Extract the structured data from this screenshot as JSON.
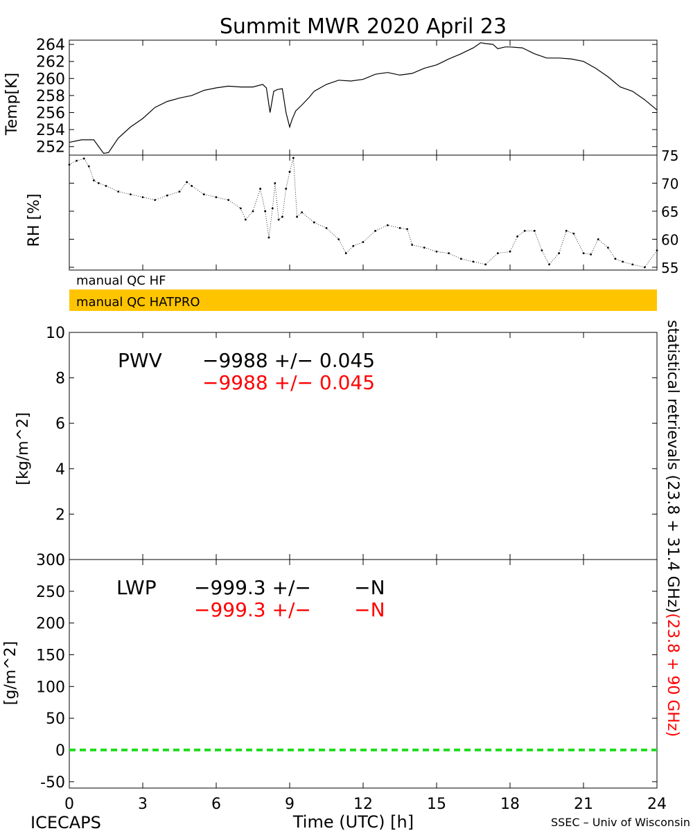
{
  "title": "Summit MWR 2020 April 23",
  "footer": {
    "left": "ICECAPS",
    "right": "SSEC – Univ of Wisconsin"
  },
  "qc": {
    "hf_label": "manual QC HF",
    "hatpro_label": "manual QC HATPRO",
    "hatpro_color": "#ffc400"
  },
  "right_caption": {
    "black": "statistical retrievals (23.8 + 31.4 GHz)",
    "red": "(23.8 + 90 GHz)"
  },
  "pwv_text": {
    "label": "PWV",
    "black": "−9988 +/− 0.045",
    "red": "−9988 +/− 0.045"
  },
  "lwp_text": {
    "label": "LWP",
    "black": "−999.3 +/−       −N",
    "red": "−999.3 +/−       −N"
  },
  "colors": {
    "red": "#ff0000",
    "green": "#22dd22",
    "black": "#000000"
  },
  "chart_data": [
    {
      "id": "temp",
      "type": "line",
      "ylabel": "Temp[K]",
      "xlim": [
        0,
        24
      ],
      "ylim": [
        251,
        264.5
      ],
      "yticks": [
        252,
        254,
        256,
        258,
        260,
        262,
        264
      ],
      "x": [
        0,
        0.5,
        1.0,
        1.4,
        1.6,
        2.0,
        2.5,
        3.0,
        3.5,
        4.0,
        4.5,
        5.0,
        5.5,
        6.0,
        6.5,
        7.0,
        7.5,
        7.9,
        8.05,
        8.2,
        8.35,
        8.5,
        8.7,
        8.85,
        9.0,
        9.1,
        9.25,
        9.5,
        9.8,
        10.0,
        10.5,
        11.0,
        11.5,
        12.0,
        12.5,
        13.0,
        13.5,
        14.0,
        14.5,
        15.0,
        15.5,
        16.0,
        16.5,
        16.8,
        17.0,
        17.3,
        17.5,
        17.8,
        18.0,
        18.5,
        19.0,
        19.5,
        20.0,
        20.5,
        21.0,
        21.5,
        22.0,
        22.5,
        23.0,
        23.5,
        24.0
      ],
      "y": [
        252.5,
        252.8,
        252.8,
        251.2,
        251.3,
        253.0,
        254.3,
        255.3,
        256.6,
        257.3,
        257.7,
        258.0,
        258.6,
        258.9,
        259.1,
        259.0,
        259.0,
        259.3,
        258.9,
        256.0,
        258.5,
        258.7,
        258.8,
        256.0,
        254.3,
        255.2,
        256.2,
        256.9,
        257.8,
        258.5,
        259.3,
        259.8,
        259.7,
        259.9,
        260.5,
        260.7,
        260.4,
        260.6,
        261.2,
        261.6,
        262.3,
        262.9,
        263.6,
        264.2,
        264.1,
        264.0,
        263.5,
        263.7,
        263.7,
        263.6,
        262.9,
        262.4,
        262.4,
        262.3,
        262.0,
        261.2,
        260.2,
        259.0,
        258.5,
        257.5,
        256.3
      ],
      "xlabel": ""
    },
    {
      "id": "rh",
      "type": "scatter",
      "ylabel": "RH [%]",
      "xlim": [
        0,
        24
      ],
      "ylim": [
        54.5,
        75
      ],
      "yticks": [
        55,
        60,
        65,
        70,
        75
      ],
      "x": [
        0,
        0.3,
        0.6,
        0.8,
        1.0,
        1.2,
        1.5,
        2.0,
        2.5,
        3.0,
        3.5,
        4.0,
        4.5,
        4.8,
        5.0,
        5.5,
        6.0,
        6.5,
        7.0,
        7.2,
        7.5,
        7.8,
        8.0,
        8.15,
        8.3,
        8.4,
        8.55,
        8.7,
        8.85,
        9.0,
        9.15,
        9.3,
        9.5,
        10.0,
        10.5,
        11.0,
        11.3,
        11.6,
        12.0,
        12.5,
        13.0,
        13.5,
        13.8,
        14.0,
        14.5,
        15.0,
        15.5,
        16.0,
        16.5,
        17.0,
        17.5,
        18.0,
        18.3,
        18.6,
        19.0,
        19.3,
        19.6,
        20.0,
        20.3,
        20.6,
        21.0,
        21.3,
        21.6,
        22.0,
        22.3,
        22.6,
        23.0,
        23.5,
        24.0
      ],
      "y": [
        73.3,
        74.0,
        74.4,
        73.0,
        70.5,
        70.0,
        69.5,
        68.5,
        68.0,
        67.5,
        67.0,
        67.8,
        68.5,
        70.2,
        69.5,
        68.0,
        67.5,
        67.0,
        65.5,
        63.5,
        65.0,
        69.0,
        65.0,
        60.3,
        65.5,
        70.0,
        63.5,
        64.0,
        69.0,
        72.0,
        74.5,
        64.0,
        64.8,
        63.0,
        62.0,
        60.0,
        57.5,
        58.8,
        59.5,
        61.5,
        62.5,
        62.0,
        61.8,
        59.0,
        58.5,
        57.8,
        57.5,
        56.5,
        56.0,
        55.5,
        57.5,
        57.8,
        60.5,
        61.5,
        61.5,
        58.0,
        55.5,
        57.5,
        61.5,
        61.0,
        57.5,
        57.3,
        60.0,
        58.5,
        56.5,
        56.0,
        55.5,
        55.0,
        58.0
      ],
      "xlabel": ""
    },
    {
      "id": "pwv",
      "type": "line",
      "ylabel": "[kg/m^2]",
      "xlim": [
        0,
        24
      ],
      "ylim": [
        0,
        10
      ],
      "yticks": [
        0,
        2,
        4,
        6,
        8,
        10
      ],
      "x": [],
      "y": [],
      "xlabel": ""
    },
    {
      "id": "lwp",
      "type": "line",
      "ylabel": "[g/m^2]",
      "xlabel": "Time (UTC) [h]",
      "xlim": [
        0,
        24
      ],
      "ylim": [
        -60,
        300
      ],
      "yticks": [
        -50,
        0,
        50,
        100,
        150,
        200,
        250,
        300
      ],
      "xticks": [
        0,
        3,
        6,
        9,
        12,
        15,
        18,
        21,
        24
      ],
      "x": [
        0,
        24
      ],
      "y": [
        0,
        0
      ],
      "series_style": "dashed"
    }
  ]
}
